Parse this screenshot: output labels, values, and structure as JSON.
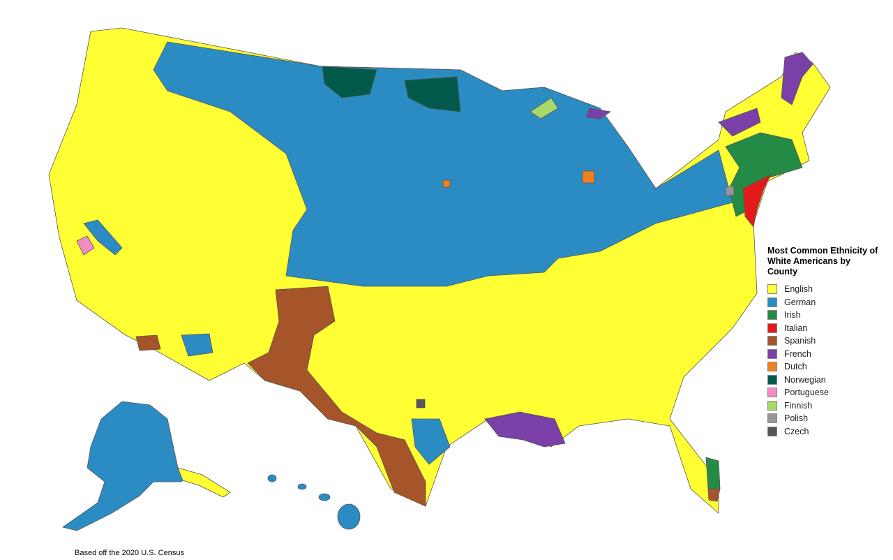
{
  "legend": {
    "title": "Most Common Ethnicity of White Americans by County",
    "items": [
      {
        "label": "English",
        "color": "#ffff33"
      },
      {
        "label": "German",
        "color": "#2b8cc4"
      },
      {
        "label": "Irish",
        "color": "#238b45"
      },
      {
        "label": "Italian",
        "color": "#e31a1c"
      },
      {
        "label": "Spanish",
        "color": "#a6542a"
      },
      {
        "label": "French",
        "color": "#7b3fa8"
      },
      {
        "label": "Dutch",
        "color": "#f47f20"
      },
      {
        "label": "Norwegian",
        "color": "#035a4a"
      },
      {
        "label": "Portuguese",
        "color": "#f38cc4"
      },
      {
        "label": "Finnish",
        "color": "#a6d96a"
      },
      {
        "label": "Polish",
        "color": "#969696"
      },
      {
        "label": "Czech",
        "color": "#555555"
      }
    ]
  },
  "note": "Based off the 2020 U.S. Census"
}
